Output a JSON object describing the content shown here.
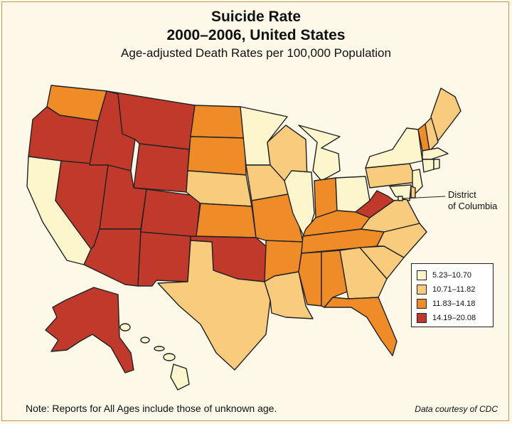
{
  "title_line1": "Suicide Rate",
  "title_line2": "2000–2006, United States",
  "subtitle": "Age-adjusted Death Rates per 100,000 Population",
  "legend": [
    {
      "label": "5.23–10.70",
      "color": "#fdf6cd"
    },
    {
      "label": "10.71–11.82",
      "color": "#f9cc7d"
    },
    {
      "label": "11.83–14.18",
      "color": "#f08c28"
    },
    {
      "label": "14.19–20.08",
      "color": "#c0392b"
    }
  ],
  "dc_label_line1": "District",
  "dc_label_line2": "of Columbia",
  "note": "Note: Reports for All Ages include those of unknown age.",
  "credit": "Data courtesy of CDC",
  "state_classes": {
    "WA": 3,
    "OR": 4,
    "CA": 1,
    "NV": 4,
    "ID": 4,
    "MT": 4,
    "WY": 4,
    "UT": 4,
    "AZ": 4,
    "CO": 4,
    "NM": 4,
    "ND": 3,
    "SD": 3,
    "NE": 2,
    "KS": 3,
    "OK": 4,
    "TX": 2,
    "MN": 1,
    "IA": 2,
    "MO": 3,
    "AR": 3,
    "LA": 2,
    "WI": 2,
    "IL": 1,
    "MS": 3,
    "MI": 1,
    "IN": 3,
    "OH": 1,
    "KY": 3,
    "TN": 3,
    "AL": 3,
    "GA": 2,
    "FL": 3,
    "SC": 2,
    "NC": 2,
    "VA": 2,
    "WV": 4,
    "PA": 2,
    "NY": 1,
    "VT": 3,
    "NH": 2,
    "ME": 2,
    "MA": 1,
    "CT": 1,
    "RI": 1,
    "NJ": 1,
    "DE": 2,
    "MD": 1,
    "DC": 1,
    "AK": 4,
    "HI": 1
  }
}
